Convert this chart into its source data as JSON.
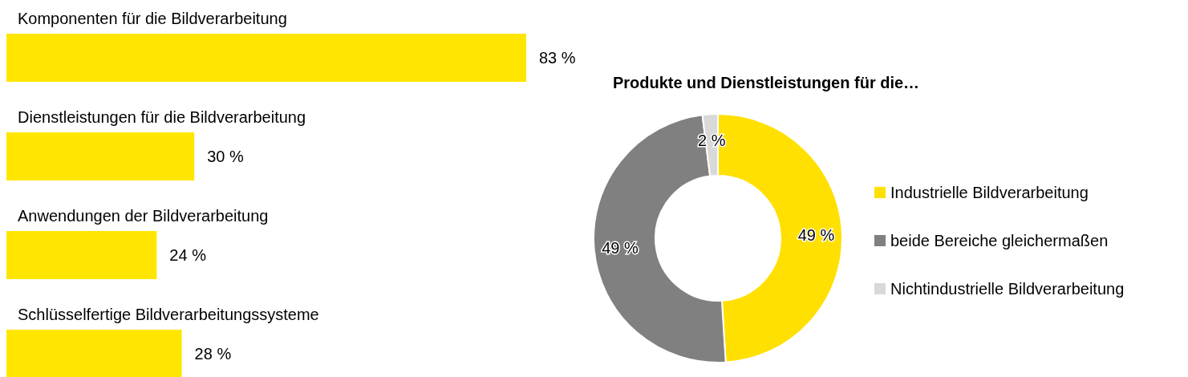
{
  "chart_data": [
    {
      "type": "bar",
      "orientation": "horizontal",
      "relative": false,
      "categories": [
        "Komponenten für die Bildverarbeitung",
        "Dienstleistungen für die Bildverarbeitung",
        "Anwendungen der Bildverarbeitung",
        "Schlüsselfertige Bildverarbeitungssysteme"
      ],
      "values": [
        83,
        30,
        24,
        28
      ],
      "value_labels": [
        "83 %",
        "30 %",
        "24 %",
        "28 %"
      ],
      "color": "#ffe600"
    },
    {
      "type": "donut",
      "title": "Produkte und Dienstleistungen für die…",
      "categories": [
        "Industrielle Bildverarbeitung",
        "beide Bereiche gleichermaßen",
        "Nichtindustrielle Bildverarbeitung"
      ],
      "values": [
        49,
        49,
        2
      ],
      "value_labels": [
        "49 %",
        "49 %",
        "2 %"
      ],
      "colors": [
        "#ffe000",
        "#808080",
        "#d9d9d9"
      ],
      "legend": "right"
    }
  ]
}
